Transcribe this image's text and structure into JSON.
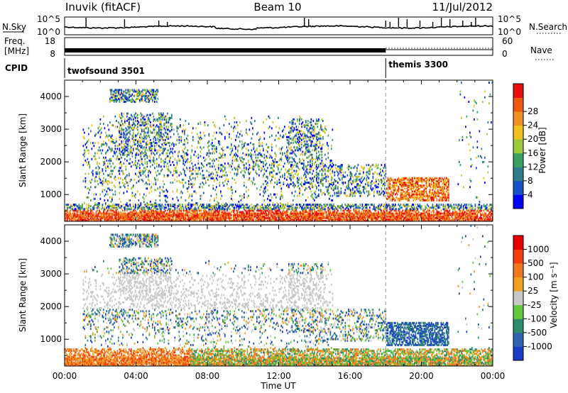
{
  "header": {
    "left": "Inuvik (fitACF)",
    "center": "Beam 10",
    "right": "11/Jul/2012"
  },
  "strip_labels": {
    "nsky": "N.Sky",
    "nsearch": "N.Search",
    "freq": "Freq.",
    "freq_unit": "[MHz]",
    "nave": "Nave",
    "cpid": "CPID"
  },
  "cpid_segments": [
    {
      "name": "twofsound 3501",
      "start": 0,
      "end": 18
    },
    {
      "name": "themis 3300",
      "start": 18,
      "end": 24
    }
  ],
  "chart_data": [
    {
      "type": "line",
      "title": "",
      "xlabel": "",
      "ylabel": "N.Sky",
      "right_label": "N.Search",
      "left_ticks": [
        "10^5",
        "10^0"
      ],
      "right_ticks": [
        "10^5",
        "10^0"
      ],
      "xlim": [
        0,
        24
      ]
    },
    {
      "type": "line",
      "title": "",
      "ylabel": "Freq. [MHz]",
      "right_label": "Nave",
      "left_ticks": [
        "18",
        "8"
      ],
      "right_ticks": [
        "60",
        "0"
      ],
      "xlim": [
        0,
        24
      ],
      "segments": [
        {
          "start": 0,
          "end": 18,
          "style": "thick"
        },
        {
          "start": 18,
          "end": 24,
          "style": "thin"
        }
      ]
    },
    {
      "type": "heatmap",
      "title": "",
      "xlabel": "",
      "ylabel": "Slant Range [km]",
      "xlim": [
        0,
        24
      ],
      "ylim": [
        180,
        4500
      ],
      "y_ticks": [
        "1000",
        "2000",
        "3000",
        "4000"
      ],
      "colorbar": {
        "label": "Power [dB]",
        "ticks": [
          "4",
          "8",
          "12",
          "16",
          "20",
          "24",
          "28"
        ],
        "colors": [
          "#0000ff",
          "#1a50c8",
          "#2e7d8c",
          "#3aa060",
          "#9cc83c",
          "#f0c020",
          "#f09020",
          "#f05a10",
          "#e81010"
        ]
      }
    },
    {
      "type": "heatmap",
      "title": "",
      "xlabel": "Time UT",
      "ylabel": "Slant Range [km]",
      "xlim": [
        0,
        24
      ],
      "ylim": [
        180,
        4500
      ],
      "x_ticks": [
        "00:00",
        "04:00",
        "08:00",
        "12:00",
        "16:00",
        "20:00",
        "00:00"
      ],
      "y_ticks": [
        "1000",
        "2000",
        "3000",
        "4000"
      ],
      "colorbar": {
        "label": "Velocity [m s⁻¹]",
        "ticks": [
          "1000",
          "500",
          "100",
          "25",
          "-25",
          "-100",
          "-500",
          "-1000"
        ],
        "colors": [
          "#1a3cc8",
          "#2e64b4",
          "#2e8c6e",
          "#64c83c",
          "#c8c8c8",
          "#f0a020",
          "#f07820",
          "#f04010",
          "#e80000"
        ]
      }
    }
  ]
}
